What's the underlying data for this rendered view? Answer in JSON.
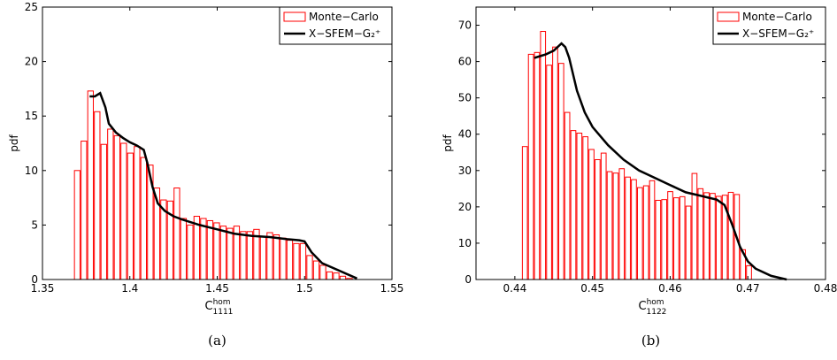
{
  "chart_data": [
    {
      "type": "histogram",
      "ylabel": "pdf",
      "xlabel": {
        "base": "C",
        "sup": "hom",
        "sub": "1111"
      },
      "caption": "(a)",
      "xlim": [
        1.35,
        1.55
      ],
      "xticks": [
        1.35,
        1.4,
        1.45,
        1.5,
        1.55
      ],
      "ylim": [
        0,
        25
      ],
      "yticks": [
        0,
        5,
        10,
        15,
        20,
        25
      ],
      "legend": "upper right",
      "histogram": {
        "name": "Monte−Carlo",
        "color": "#ff0000",
        "bins": [
          1.368,
          1.3718,
          1.3756,
          1.3794,
          1.3832,
          1.387,
          1.3908,
          1.3946,
          1.3984,
          1.4022,
          1.406,
          1.4098,
          1.4136,
          1.4174,
          1.4212,
          1.425,
          1.4288,
          1.4326,
          1.4364,
          1.4402,
          1.444,
          1.4478,
          1.4516,
          1.4554,
          1.4592,
          1.463,
          1.4668,
          1.4706,
          1.4744,
          1.4782,
          1.482,
          1.4858,
          1.4896,
          1.4934,
          1.4972,
          1.501,
          1.5048,
          1.5086,
          1.5124,
          1.5162,
          1.52,
          1.5238,
          1.5276
        ],
        "values": [
          10,
          12.7,
          17.3,
          15.4,
          12.4,
          13.8,
          13.2,
          12.5,
          11.6,
          12.2,
          11.2,
          10.5,
          8.4,
          7.3,
          7.2,
          8.4,
          5.6,
          5.0,
          5.8,
          5.6,
          5.4,
          5.2,
          4.9,
          4.7,
          4.9,
          4.4,
          4.4,
          4.6,
          3.9,
          4.3,
          4.1,
          3.8,
          3.6,
          3.3,
          3.3,
          2.2,
          1.7,
          1.3,
          0.7,
          0.6,
          0.3,
          0.1
        ]
      },
      "line": {
        "name": "X−SFEM−G₂⁺",
        "color": "#000000",
        "x": [
          1.377,
          1.38,
          1.383,
          1.386,
          1.388,
          1.392,
          1.396,
          1.4,
          1.404,
          1.408,
          1.41,
          1.413,
          1.416,
          1.42,
          1.425,
          1.43,
          1.44,
          1.45,
          1.46,
          1.47,
          1.48,
          1.49,
          1.497,
          1.5,
          1.504,
          1.51,
          1.52,
          1.53
        ],
        "values": [
          16.8,
          16.8,
          17.1,
          15.8,
          14.3,
          13.5,
          13.0,
          12.6,
          12.3,
          11.9,
          10.7,
          8.5,
          7.0,
          6.3,
          5.8,
          5.5,
          5.0,
          4.6,
          4.2,
          4.0,
          3.9,
          3.7,
          3.6,
          3.5,
          2.5,
          1.5,
          0.8,
          0.1
        ]
      }
    },
    {
      "type": "histogram",
      "ylabel": "pdf",
      "xlabel": {
        "base": "C",
        "sup": "hom",
        "sub": "1122"
      },
      "caption": "(b)",
      "xlim": [
        0.435,
        0.48
      ],
      "xticks": [
        0.44,
        0.45,
        0.46,
        0.47,
        0.48
      ],
      "ylim": [
        0,
        75
      ],
      "yticks": [
        0,
        10,
        20,
        30,
        40,
        50,
        60,
        70
      ],
      "legend": "upper right",
      "histogram": {
        "name": "Monte−Carlo",
        "color": "#ff0000",
        "bins": [
          0.4409,
          0.44168,
          0.44246,
          0.44324,
          0.44402,
          0.4448,
          0.44558,
          0.44636,
          0.44714,
          0.44792,
          0.4487,
          0.44948,
          0.45026,
          0.45104,
          0.45182,
          0.4526,
          0.45338,
          0.45416,
          0.45494,
          0.45572,
          0.4565,
          0.45728,
          0.45806,
          0.45884,
          0.45962,
          0.4604,
          0.46118,
          0.46196,
          0.46274,
          0.46352,
          0.4643,
          0.46508,
          0.46586,
          0.46664,
          0.46742,
          0.4682,
          0.46898,
          0.46976,
          0.47054
        ],
        "values": [
          36.6,
          62,
          62.5,
          68.3,
          59,
          64,
          59.5,
          46,
          41,
          40.3,
          39.3,
          35.8,
          33,
          34.8,
          29.7,
          29.3,
          30.5,
          28.2,
          27.5,
          25.3,
          25.8,
          27.2,
          21.8,
          22,
          24.2,
          22.5,
          22.8,
          20.2,
          29.2,
          25,
          23.9,
          23.7,
          22.9,
          23.2,
          24,
          23.4,
          8.2,
          3.8
        ]
      },
      "line": {
        "name": "X−SFEM−G₂⁺",
        "color": "#000000",
        "x": [
          0.4425,
          0.444,
          0.445,
          0.446,
          0.4465,
          0.447,
          0.448,
          0.449,
          0.45,
          0.452,
          0.454,
          0.456,
          0.458,
          0.46,
          0.462,
          0.464,
          0.465,
          0.466,
          0.467,
          0.468,
          0.469,
          0.47,
          0.471,
          0.473,
          0.475
        ],
        "values": [
          61,
          62,
          63,
          65,
          64,
          61,
          52,
          46,
          42,
          37,
          33,
          30,
          28,
          26,
          24,
          23,
          22.5,
          22,
          20.5,
          15,
          9,
          5,
          3,
          1,
          0
        ]
      }
    }
  ]
}
